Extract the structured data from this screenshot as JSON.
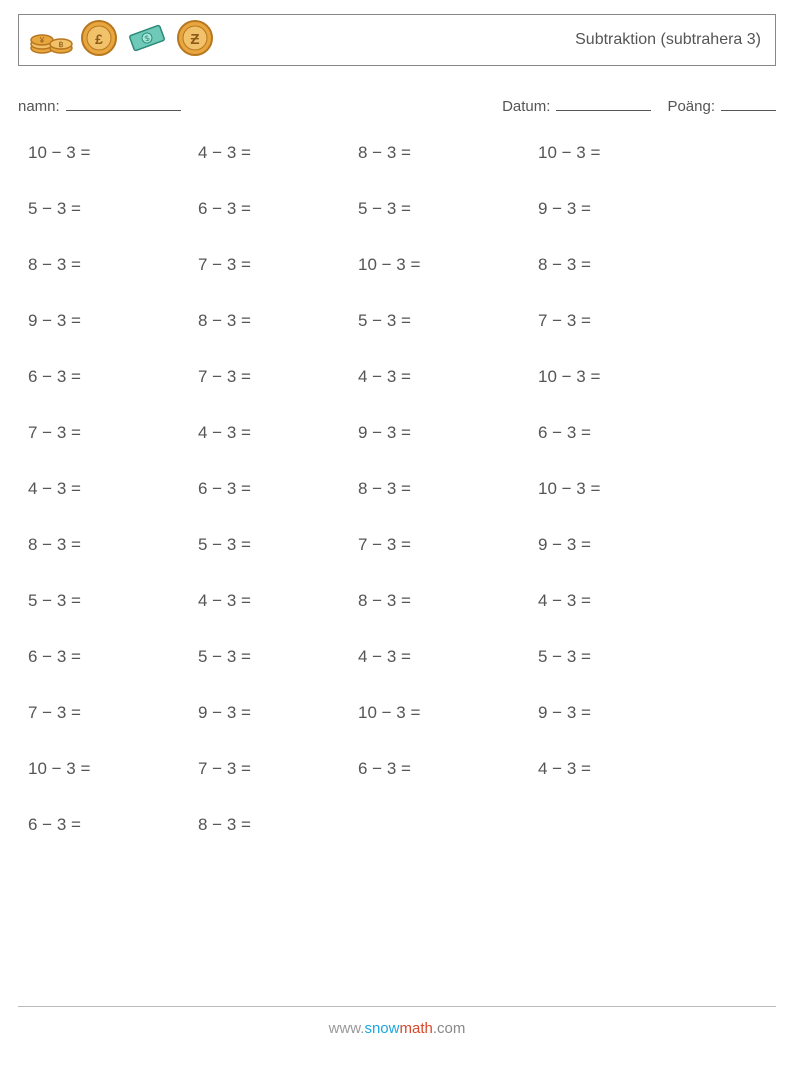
{
  "header": {
    "title": "Subtraktion (subtrahera 3)",
    "icon_colors": {
      "coin_fill": "#e8a63f",
      "coin_stroke": "#b8761f",
      "coin_inner": "#f2c26b",
      "bill_fill": "#6fc9b8",
      "bill_stroke": "#2a8a77"
    }
  },
  "meta": {
    "name_label": "namn:",
    "date_label": "Datum:",
    "score_label": "Poäng:"
  },
  "layout": {
    "columns": 4,
    "rows": 13,
    "font_size": 17,
    "text_color": "#555555",
    "background_color": "#ffffff",
    "border_color": "#888888"
  },
  "problems": [
    [
      "10 − 3 =",
      "4 − 3 =",
      "8 − 3 =",
      "10 − 3 ="
    ],
    [
      "5 − 3 =",
      "6 − 3 =",
      "5 − 3 =",
      "9 − 3 ="
    ],
    [
      "8 − 3 =",
      "7 − 3 =",
      "10 − 3 =",
      "8 − 3 ="
    ],
    [
      "9 − 3 =",
      "8 − 3 =",
      "5 − 3 =",
      "7 − 3 ="
    ],
    [
      "6 − 3 =",
      "7 − 3 =",
      "4 − 3 =",
      "10 − 3 ="
    ],
    [
      "7 − 3 =",
      "4 − 3 =",
      "9 − 3 =",
      "6 − 3 ="
    ],
    [
      "4 − 3 =",
      "6 − 3 =",
      "8 − 3 =",
      "10 − 3 ="
    ],
    [
      "8 − 3 =",
      "5 − 3 =",
      "7 − 3 =",
      "9 − 3 ="
    ],
    [
      "5 − 3 =",
      "4 − 3 =",
      "8 − 3 =",
      "4 − 3 ="
    ],
    [
      "6 − 3 =",
      "5 − 3 =",
      "4 − 3 =",
      "5 − 3 ="
    ],
    [
      "7 − 3 =",
      "9 − 3 =",
      "10 − 3 =",
      "9 − 3 ="
    ],
    [
      "10 − 3 =",
      "7 − 3 =",
      "6 − 3 =",
      "4 − 3 ="
    ],
    [
      "6 − 3 =",
      "8 − 3 =",
      "",
      ""
    ]
  ],
  "footer": {
    "url_prefix": "www.",
    "url_snow": "snow",
    "url_math": "math",
    "url_suffix": ".com"
  }
}
